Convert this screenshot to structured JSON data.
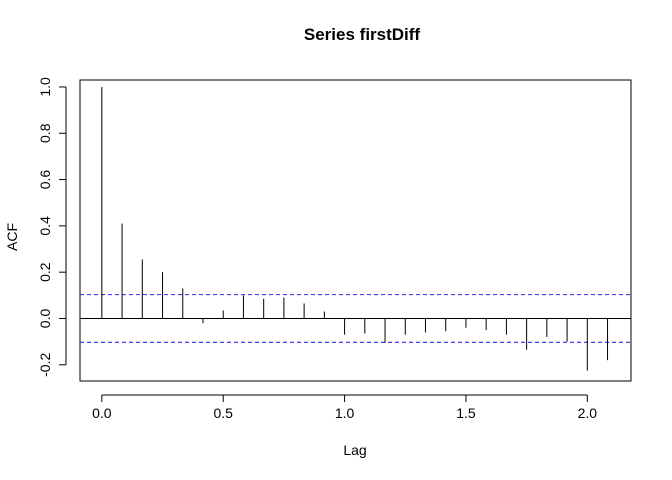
{
  "chart_data": {
    "type": "bar",
    "title": "Series  firstDiff",
    "xlabel": "Lag",
    "ylabel": "ACF",
    "xlim": [
      -0.09,
      2.18
    ],
    "ylim": [
      -0.27,
      1.03
    ],
    "x_ticks": [
      0.0,
      0.5,
      1.0,
      1.5,
      2.0
    ],
    "x_tick_labels": [
      "0.0",
      "0.5",
      "1.0",
      "1.5",
      "2.0"
    ],
    "y_ticks": [
      -0.2,
      0.0,
      0.2,
      0.4,
      0.6,
      0.8,
      1.0
    ],
    "y_tick_labels": [
      "-0.2",
      "0.0",
      "0.2",
      "0.4",
      "0.6",
      "0.8",
      "1.0"
    ],
    "lags": [
      0.0,
      0.0833,
      0.1667,
      0.25,
      0.3333,
      0.4167,
      0.5,
      0.5833,
      0.6667,
      0.75,
      0.8333,
      0.9167,
      1.0,
      1.0833,
      1.1667,
      1.25,
      1.3333,
      1.4167,
      1.5,
      1.5833,
      1.6667,
      1.75,
      1.8333,
      1.9167,
      2.0,
      2.0833
    ],
    "acf": [
      1.0,
      0.41,
      0.255,
      0.2,
      0.13,
      -0.02,
      0.035,
      0.1,
      0.085,
      0.09,
      0.065,
      0.03,
      -0.07,
      -0.065,
      -0.105,
      -0.07,
      -0.06,
      -0.055,
      -0.04,
      -0.05,
      -0.07,
      -0.135,
      -0.08,
      -0.1,
      -0.225,
      -0.18
    ],
    "confidence_bound": 0.103,
    "zero_line": true,
    "grid": false,
    "colors": {
      "bars": "#000000",
      "confidence_lines": "#2b2bf5",
      "axes": "#000000",
      "background": "#ffffff"
    }
  }
}
